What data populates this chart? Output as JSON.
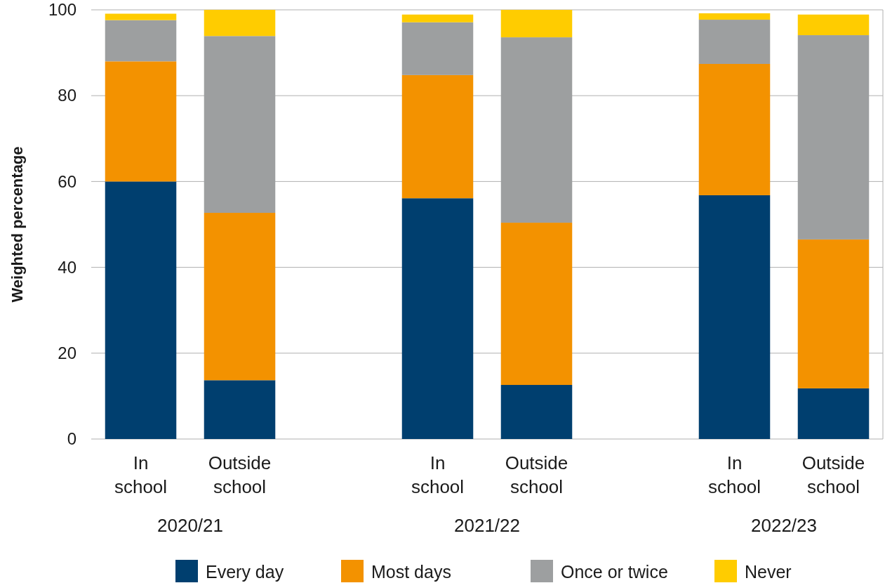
{
  "chart_data": {
    "type": "bar",
    "stacked": true,
    "ylabel": "Weighted percentage",
    "categories": [
      "In school",
      "Outside school",
      null,
      "In school",
      "Outside school",
      null,
      "In school",
      "Outside school"
    ],
    "series": [
      {
        "name": "Every day",
        "color": "#003f6f",
        "values": [
          60,
          13.7,
          null,
          56.1,
          12.6,
          null,
          56.8,
          11.8
        ]
      },
      {
        "name": "Most days",
        "color": "#f39200",
        "values": [
          28,
          39,
          null,
          28.7,
          37.8,
          null,
          30.6,
          34.7
        ]
      },
      {
        "name": "Once or twice",
        "color": "#9d9fa0",
        "values": [
          9.6,
          41.2,
          null,
          12.3,
          43.2,
          null,
          10.3,
          47.6
        ]
      },
      {
        "name": "Never",
        "color": "#ffcc00",
        "values": [
          1.5,
          6.1,
          null,
          1.8,
          6.4,
          null,
          1.5,
          4.8
        ]
      }
    ],
    "ylim": [
      0,
      100
    ],
    "yticks": [
      0,
      20,
      40,
      60,
      80,
      100
    ],
    "grid": "y",
    "legend": "bottom",
    "annotations": [
      "2020/21",
      "2021/22",
      "2022/23"
    ]
  }
}
